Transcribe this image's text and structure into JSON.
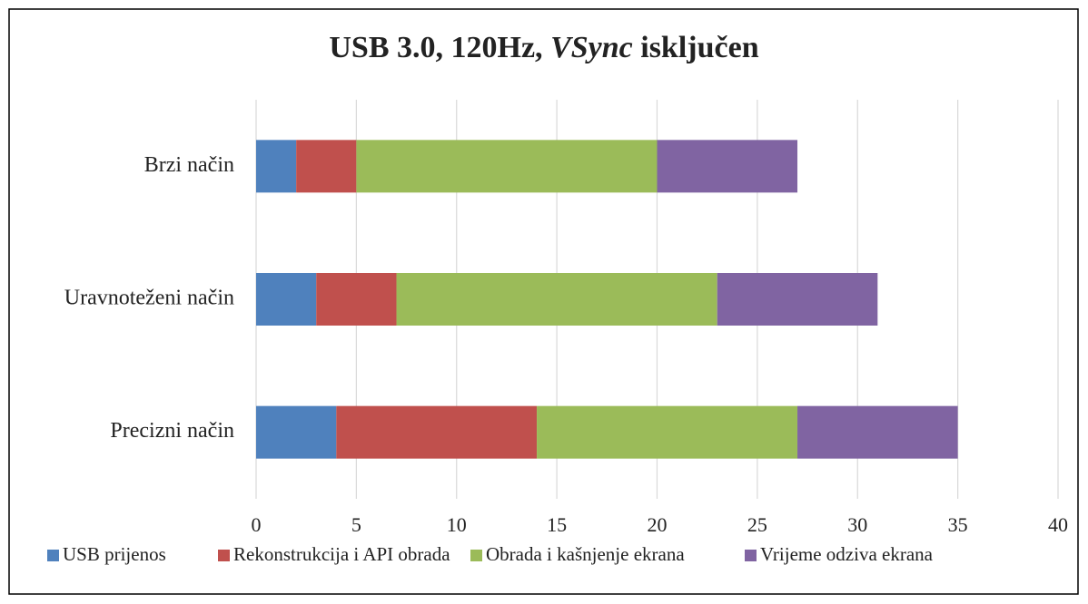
{
  "chart_data": {
    "type": "stacked_barh",
    "title": "USB 3.0, 120Hz, VSync isključen",
    "title_italic": "VSync",
    "categories": [
      "Brzi način",
      "Uravnoteženi način",
      "Precizni način"
    ],
    "series": [
      {
        "name": "USB prijenos",
        "color": "#4f81bd",
        "values": [
          2,
          3,
          4
        ]
      },
      {
        "name": "Rekonstrukcija i API obrada",
        "color": "#c0504d",
        "values": [
          3,
          4,
          10
        ]
      },
      {
        "name": "Obrada i kašnjenje ekrana",
        "color": "#9bbb59",
        "values": [
          15,
          16,
          13
        ]
      },
      {
        "name": "Vrijeme odziva ekrana",
        "color": "#8064a2",
        "values": [
          7,
          8,
          8
        ]
      }
    ],
    "xlim": [
      0,
      40
    ],
    "xticks": [
      0,
      5,
      10,
      15,
      20,
      25,
      30,
      35,
      40
    ],
    "grid": true,
    "legend": "bottom"
  }
}
